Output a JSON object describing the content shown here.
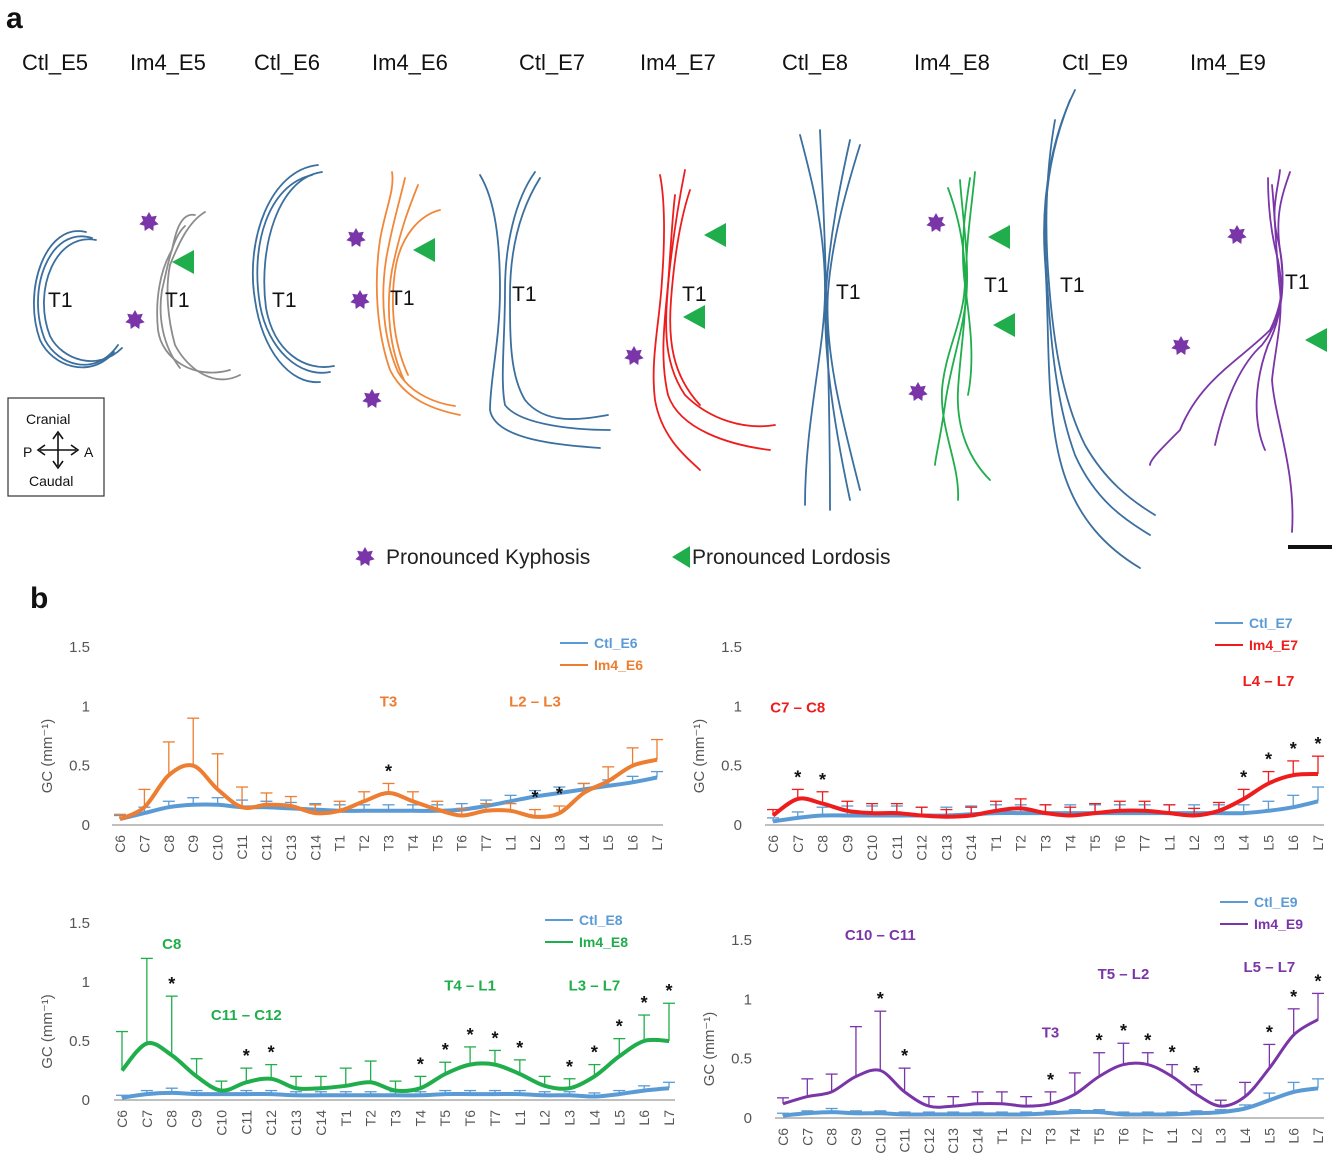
{
  "figure": {
    "panel_a_letter": "a",
    "panel_b_letter": "b",
    "columns": [
      {
        "label": "Ctl_E5",
        "color": "#3a6f9f"
      },
      {
        "label": "Im4_E5",
        "color": "#8c8c8c"
      },
      {
        "label": "Ctl_E6",
        "color": "#3a6f9f"
      },
      {
        "label": "Im4_E6",
        "color": "#f0883a"
      },
      {
        "label": "Ctl_E7",
        "color": "#3a6f9f"
      },
      {
        "label": "Im4_E7",
        "color": "#ee1c1c"
      },
      {
        "label": "Ctl_E8",
        "color": "#3a6f9f"
      },
      {
        "label": "Im4_E8",
        "color": "#1fae4b"
      },
      {
        "label": "Ctl_E9",
        "color": "#3a6f9f"
      },
      {
        "label": "Im4_E9",
        "color": "#7a35a8"
      }
    ],
    "t1_label": "T1",
    "orientation": {
      "cranial": "Cranial",
      "caudal": "Caudal",
      "p": "P",
      "a": "A"
    },
    "legend": {
      "kyphosis": "Pronounced Kyphosis",
      "lordosis": "Pronounced Lordosis",
      "kyphosis_color": "#7a35a8",
      "lordosis_color": "#1fae4b"
    },
    "ylabel": "GC (mm⁻¹)"
  },
  "chart_data": [
    {
      "type": "line",
      "categories": [
        "C6",
        "C7",
        "C8",
        "C9",
        "C10",
        "C11",
        "C12",
        "C13",
        "C14",
        "T1",
        "T2",
        "T3",
        "T4",
        "T5",
        "T6",
        "T7",
        "L1",
        "L2",
        "L3",
        "L4",
        "L5",
        "L6",
        "L7"
      ],
      "ylim": [
        0,
        1.5
      ],
      "yticks": [
        "0",
        "0.5",
        "1",
        "1.5"
      ],
      "ylabel": "GC (mm⁻¹)",
      "legend_position": "top-right",
      "series": [
        {
          "name": "Ctl_E6",
          "color": "#5b9bd5",
          "values": [
            0.05,
            0.1,
            0.15,
            0.17,
            0.17,
            0.15,
            0.15,
            0.14,
            0.13,
            0.12,
            0.12,
            0.12,
            0.12,
            0.12,
            0.13,
            0.16,
            0.2,
            0.24,
            0.27,
            0.3,
            0.33,
            0.36,
            0.4
          ],
          "errors": [
            0.03,
            0.05,
            0.05,
            0.06,
            0.06,
            0.06,
            0.05,
            0.05,
            0.05,
            0.05,
            0.05,
            0.05,
            0.05,
            0.05,
            0.05,
            0.05,
            0.05,
            0.05,
            0.05,
            0.05,
            0.05,
            0.05,
            0.05
          ]
        },
        {
          "name": "Im4_E6",
          "color": "#ed7d31",
          "values": [
            0.05,
            0.15,
            0.42,
            0.5,
            0.3,
            0.15,
            0.17,
            0.16,
            0.1,
            0.12,
            0.2,
            0.27,
            0.2,
            0.13,
            0.08,
            0.12,
            0.12,
            0.07,
            0.1,
            0.27,
            0.37,
            0.5,
            0.55
          ],
          "errors": [
            0.04,
            0.15,
            0.28,
            0.4,
            0.3,
            0.17,
            0.1,
            0.08,
            0.07,
            0.08,
            0.08,
            0.08,
            0.08,
            0.07,
            0.06,
            0.06,
            0.06,
            0.06,
            0.06,
            0.08,
            0.12,
            0.15,
            0.17
          ]
        }
      ],
      "annotations": [
        {
          "text": "T3",
          "at": "T3",
          "y": 1.0,
          "color": "#ed7d31"
        },
        {
          "text": "L2 – L3",
          "at": "L2",
          "y": 1.0,
          "color": "#ed7d31"
        }
      ],
      "stars": [
        "T3",
        "L2",
        "L3"
      ]
    },
    {
      "type": "line",
      "categories": [
        "C6",
        "C7",
        "C8",
        "C9",
        "C10",
        "C11",
        "C12",
        "C13",
        "C14",
        "T1",
        "T2",
        "T3",
        "T4",
        "T5",
        "T6",
        "T7",
        "L1",
        "L2",
        "L3",
        "L4",
        "L5",
        "L6",
        "L7"
      ],
      "ylim": [
        0,
        1.5
      ],
      "yticks": [
        "0",
        "0.5",
        "1",
        "1.5"
      ],
      "ylabel": "GC (mm⁻¹)",
      "legend_position": "top-right",
      "series": [
        {
          "name": "Ctl_E7",
          "color": "#5b9bd5",
          "values": [
            0.03,
            0.06,
            0.08,
            0.08,
            0.08,
            0.08,
            0.08,
            0.08,
            0.09,
            0.1,
            0.1,
            0.1,
            0.1,
            0.1,
            0.1,
            0.1,
            0.1,
            0.1,
            0.1,
            0.1,
            0.12,
            0.15,
            0.2
          ],
          "errors": [
            0.03,
            0.05,
            0.07,
            0.08,
            0.08,
            0.08,
            0.07,
            0.07,
            0.07,
            0.07,
            0.07,
            0.07,
            0.07,
            0.07,
            0.07,
            0.07,
            0.07,
            0.07,
            0.07,
            0.07,
            0.08,
            0.1,
            0.12
          ]
        },
        {
          "name": "Im4_E7",
          "color": "#ee1c1c",
          "values": [
            0.08,
            0.22,
            0.18,
            0.12,
            0.1,
            0.1,
            0.08,
            0.07,
            0.08,
            0.12,
            0.14,
            0.1,
            0.08,
            0.1,
            0.12,
            0.12,
            0.1,
            0.08,
            0.12,
            0.22,
            0.35,
            0.42,
            0.43
          ],
          "errors": [
            0.05,
            0.08,
            0.1,
            0.08,
            0.08,
            0.08,
            0.07,
            0.06,
            0.07,
            0.08,
            0.08,
            0.07,
            0.07,
            0.08,
            0.08,
            0.08,
            0.07,
            0.06,
            0.07,
            0.08,
            0.1,
            0.12,
            0.15
          ]
        }
      ],
      "annotations": [
        {
          "text": "C7 – C8",
          "at": "C7",
          "y": 0.95,
          "color": "#ee1c1c"
        },
        {
          "text": "L4 – L7",
          "at": "L5",
          "y": 1.17,
          "color": "#ee1c1c"
        }
      ],
      "stars": [
        "C7",
        "C8",
        "L4",
        "L5",
        "L6",
        "L7"
      ]
    },
    {
      "type": "line",
      "categories": [
        "C6",
        "C7",
        "C8",
        "C9",
        "C10",
        "C11",
        "C12",
        "C13",
        "C14",
        "T1",
        "T2",
        "T3",
        "T4",
        "T5",
        "T6",
        "T7",
        "L1",
        "L2",
        "L3",
        "L4",
        "L5",
        "L6",
        "L7"
      ],
      "ylim": [
        0,
        1.5
      ],
      "yticks": [
        "0",
        "0.5",
        "1",
        "1.5"
      ],
      "ylabel": "GC (mm⁻¹)",
      "legend_position": "top-right",
      "series": [
        {
          "name": "Ctl_E8",
          "color": "#5b9bd5",
          "values": [
            0.02,
            0.05,
            0.06,
            0.05,
            0.05,
            0.05,
            0.05,
            0.04,
            0.04,
            0.04,
            0.04,
            0.04,
            0.04,
            0.05,
            0.05,
            0.05,
            0.05,
            0.04,
            0.04,
            0.03,
            0.05,
            0.08,
            0.1
          ],
          "errors": [
            0.02,
            0.03,
            0.04,
            0.03,
            0.03,
            0.03,
            0.03,
            0.03,
            0.03,
            0.03,
            0.03,
            0.03,
            0.03,
            0.03,
            0.03,
            0.03,
            0.03,
            0.03,
            0.03,
            0.03,
            0.03,
            0.04,
            0.05
          ]
        },
        {
          "name": "Im4_E8",
          "color": "#1fae4b",
          "values": [
            0.25,
            0.48,
            0.38,
            0.2,
            0.08,
            0.15,
            0.18,
            0.1,
            0.1,
            0.12,
            0.15,
            0.08,
            0.1,
            0.22,
            0.3,
            0.3,
            0.22,
            0.12,
            0.1,
            0.2,
            0.37,
            0.5,
            0.5
          ],
          "errors": [
            0.33,
            0.72,
            0.5,
            0.15,
            0.08,
            0.12,
            0.12,
            0.1,
            0.1,
            0.15,
            0.18,
            0.08,
            0.1,
            0.1,
            0.15,
            0.12,
            0.12,
            0.08,
            0.08,
            0.1,
            0.15,
            0.22,
            0.32
          ]
        }
      ],
      "annotations": [
        {
          "text": "C8",
          "at": "C8",
          "y": 1.28,
          "color": "#1fae4b"
        },
        {
          "text": "C11 – C12",
          "at": "C11",
          "y": 0.68,
          "color": "#1fae4b"
        },
        {
          "text": "T4 – L1",
          "at": "T6",
          "y": 0.93,
          "color": "#1fae4b"
        },
        {
          "text": "L3 – L7",
          "at": "L4",
          "y": 0.93,
          "color": "#1fae4b"
        }
      ],
      "stars": [
        "C8",
        "C11",
        "C12",
        "T4",
        "T5",
        "T6",
        "T7",
        "L1",
        "L3",
        "L4",
        "L5",
        "L6",
        "L7"
      ]
    },
    {
      "type": "line",
      "categories": [
        "C6",
        "C7",
        "C8",
        "C9",
        "C10",
        "C11",
        "C12",
        "C13",
        "C14",
        "T1",
        "T2",
        "T3",
        "T4",
        "T5",
        "T6",
        "T7",
        "L1",
        "L2",
        "L3",
        "L4",
        "L5",
        "L6",
        "L7"
      ],
      "ylim": [
        0,
        1.5
      ],
      "yticks": [
        "0",
        "0.5",
        "1",
        "1.5"
      ],
      "ylabel": "GC (mm⁻¹)",
      "legend_position": "top-right",
      "series": [
        {
          "name": "Ctl_E9",
          "color": "#5b9bd5",
          "values": [
            0.02,
            0.04,
            0.05,
            0.04,
            0.04,
            0.03,
            0.03,
            0.03,
            0.03,
            0.03,
            0.03,
            0.04,
            0.05,
            0.05,
            0.03,
            0.03,
            0.03,
            0.04,
            0.05,
            0.08,
            0.15,
            0.22,
            0.25
          ],
          "errors": [
            0.02,
            0.02,
            0.03,
            0.02,
            0.02,
            0.02,
            0.02,
            0.02,
            0.02,
            0.02,
            0.02,
            0.02,
            0.02,
            0.02,
            0.02,
            0.02,
            0.02,
            0.02,
            0.02,
            0.03,
            0.06,
            0.08,
            0.08
          ]
        },
        {
          "name": "Im4_E9",
          "color": "#7a35a8",
          "values": [
            0.12,
            0.18,
            0.22,
            0.35,
            0.4,
            0.22,
            0.1,
            0.1,
            0.12,
            0.12,
            0.1,
            0.12,
            0.2,
            0.35,
            0.45,
            0.45,
            0.35,
            0.2,
            0.1,
            0.18,
            0.42,
            0.7,
            0.83
          ],
          "errors": [
            0.05,
            0.15,
            0.15,
            0.42,
            0.5,
            0.2,
            0.08,
            0.08,
            0.1,
            0.1,
            0.08,
            0.1,
            0.18,
            0.2,
            0.18,
            0.1,
            0.1,
            0.08,
            0.05,
            0.12,
            0.2,
            0.22,
            0.22
          ]
        }
      ],
      "annotations": [
        {
          "text": "C10 – C11",
          "at": "C10",
          "y": 1.5,
          "color": "#7a35a8"
        },
        {
          "text": "T3",
          "at": "T3",
          "y": 0.68,
          "color": "#7a35a8"
        },
        {
          "text": "T5 – L2",
          "at": "T6",
          "y": 1.17,
          "color": "#7a35a8"
        },
        {
          "text": "L5 – L7",
          "at": "L5",
          "y": 1.23,
          "color": "#7a35a8"
        }
      ],
      "stars": [
        "C10",
        "C11",
        "T3",
        "T5",
        "T6",
        "T7",
        "L1",
        "L2",
        "L5",
        "L6",
        "L7"
      ]
    }
  ]
}
